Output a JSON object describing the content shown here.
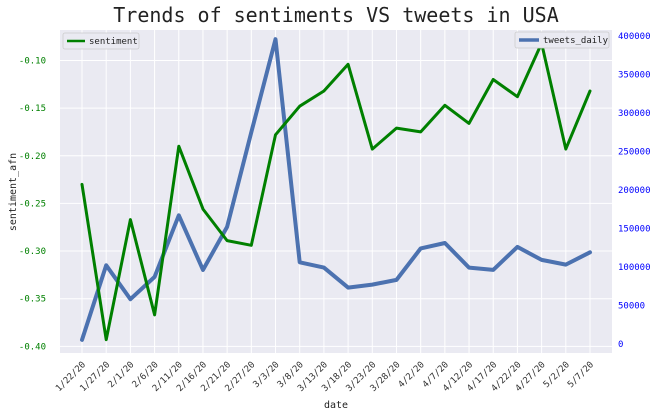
{
  "chart_data": {
    "type": "line",
    "title": "Trends of sentiments VS tweets in USA",
    "xlabel": "date",
    "ylabel_left": "sentiment_afn",
    "ylabel_right": "",
    "categories": [
      "1/22/20",
      "1/27/20",
      "2/1/20",
      "2/6/20",
      "2/11/20",
      "2/16/20",
      "2/21/20",
      "2/27/20",
      "3/3/20",
      "3/8/20",
      "3/13/20",
      "3/18/20",
      "3/23/20",
      "3/28/20",
      "4/2/20",
      "4/7/20",
      "4/12/20",
      "4/17/20",
      "4/22/20",
      "4/27/20",
      "5/2/20",
      "5/7/20"
    ],
    "ylim_left": [
      -0.407,
      -0.068
    ],
    "ylim_right": [
      -12000,
      408000
    ],
    "yticks_left": [
      -0.4,
      -0.35,
      -0.3,
      -0.25,
      -0.2,
      -0.15,
      -0.1
    ],
    "yticks_left_labels": [
      "-0.40",
      "-0.35",
      "-0.30",
      "-0.25",
      "-0.20",
      "-0.15",
      "-0.10"
    ],
    "yticks_right": [
      0,
      50000,
      100000,
      150000,
      200000,
      250000,
      300000,
      350000,
      400000
    ],
    "yticks_right_labels": [
      "0",
      "50000",
      "100000",
      "150000",
      "200000",
      "250000",
      "300000",
      "350000",
      "400000"
    ],
    "grid": true,
    "series": [
      {
        "name": "sentiment",
        "axis": "left",
        "color": "#008000",
        "values": [
          -0.23,
          -0.393,
          -0.267,
          -0.367,
          -0.19,
          -0.256,
          -0.289,
          -0.294,
          -0.178,
          -0.148,
          -0.132,
          -0.104,
          -0.193,
          -0.171,
          -0.175,
          -0.147,
          -0.166,
          -0.12,
          -0.138,
          -0.082,
          -0.193,
          -0.132
        ]
      },
      {
        "name": "tweets_daily",
        "axis": "right",
        "color": "#4c72b0",
        "values": [
          5000,
          102000,
          58000,
          87000,
          167000,
          96000,
          152000,
          275000,
          396000,
          106000,
          99000,
          73000,
          77000,
          83000,
          124000,
          131000,
          99000,
          96000,
          126000,
          109000,
          103000,
          119000
        ]
      }
    ],
    "legend_left_position": "top-left",
    "legend_right_position": "top-right"
  }
}
